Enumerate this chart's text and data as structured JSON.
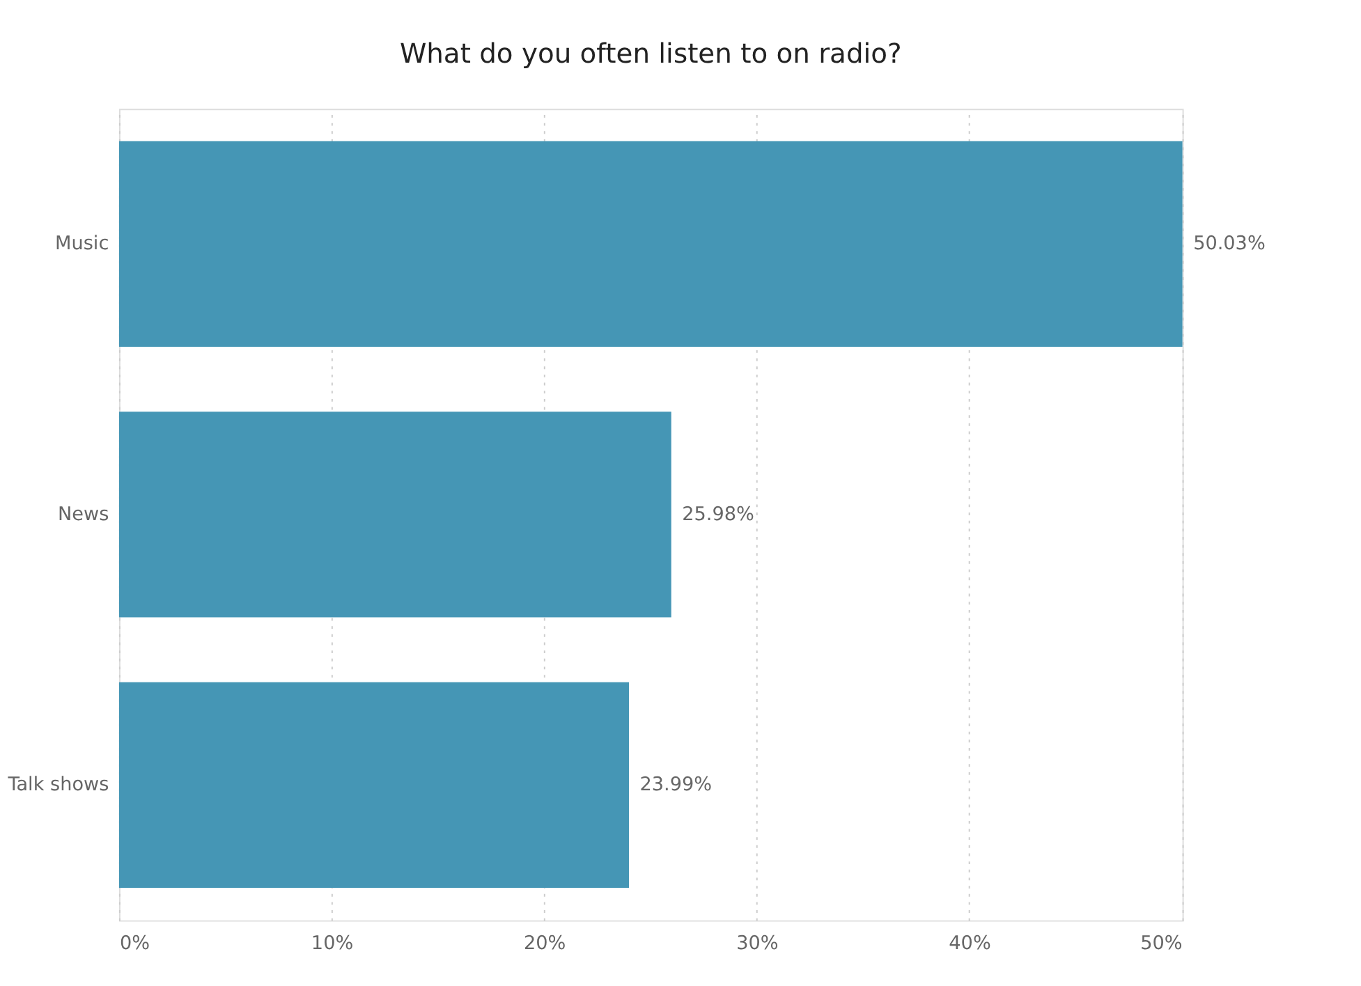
{
  "chart_data": {
    "type": "bar",
    "orientation": "horizontal",
    "title": "What do you often listen to on radio?",
    "categories": [
      "Music",
      "News",
      "Talk shows"
    ],
    "values": [
      50.03,
      25.98,
      23.99
    ],
    "value_labels": [
      "50.03%",
      "25.98%",
      "23.99%"
    ],
    "color": "#4596b5",
    "xlim": [
      0,
      50.03
    ],
    "xticks": [
      {
        "value": 0,
        "label": "0%"
      },
      {
        "value": 10,
        "label": "10%"
      },
      {
        "value": 20,
        "label": "20%"
      },
      {
        "value": 30,
        "label": "30%"
      },
      {
        "value": 40,
        "label": "40%"
      },
      {
        "value": 50,
        "label": "50%"
      }
    ],
    "grid": "x"
  }
}
